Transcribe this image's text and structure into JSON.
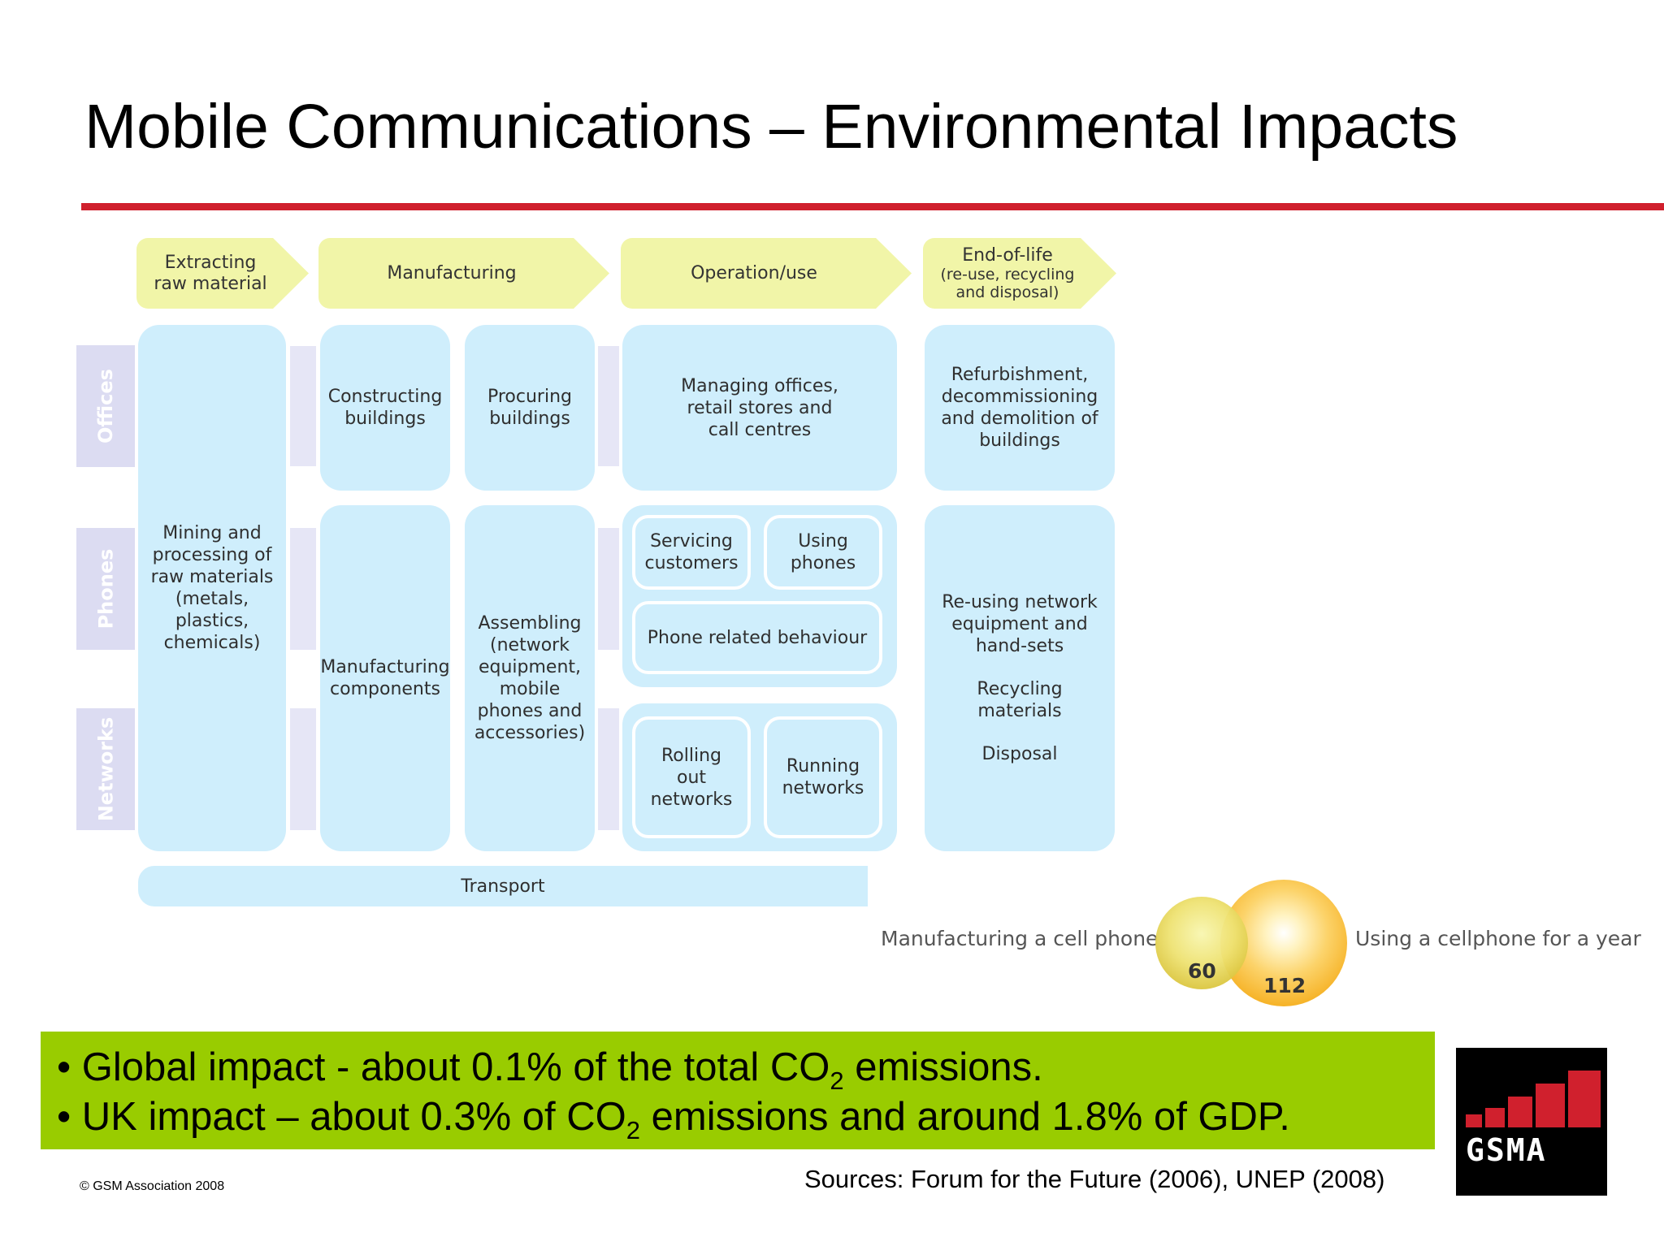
{
  "title": "Mobile Communications – Environmental Impacts",
  "colors": {
    "accent_red": "#d0202d",
    "stage_yellow": "#f1f5a8",
    "box_blue": "#cfeefc",
    "bullet_green": "#99cc00",
    "bubble_orange": "#f7b81c"
  },
  "stages": {
    "extract": "Extracting raw material",
    "manufacturing": "Manufacturing",
    "operation": "Operation/use",
    "eol": "End-of-life",
    "eol_sub": "(re-use, recycling and disposal)"
  },
  "rows": {
    "offices": "Offices",
    "phones": "Phones",
    "networks": "Networks"
  },
  "boxes": {
    "mining": "Mining and processing of raw materials (metals, plastics, chemicals)",
    "constructing": "Constructing buildings",
    "procuring": "Procuring buildings",
    "managing": "Managing offices, retail stores and call centres",
    "refurb": "Refurbishment, decommissioning and demolition of buildings",
    "manufacturing_components": "Manufacturing components",
    "assembling": "Assembling (network equipment, mobile phones and accessories)",
    "servicing": "Servicing customers",
    "using_phones": "Using phones",
    "phone_behaviour": "Phone related behaviour",
    "rolling_out": "Rolling out networks",
    "running": "Running networks",
    "reusing": "Re-using network equipment and hand-sets",
    "recycling": "Recycling materials",
    "disposal": "Disposal",
    "transport": "Transport"
  },
  "comparison": {
    "manufacturing_label": "Manufacturing a cell phone",
    "manufacturing_value": "60",
    "using_label": "Using a cellphone for a year",
    "using_value": "112"
  },
  "bullets": {
    "b1_pre": "• Global impact - about 0.1% of the total CO",
    "b1_sub": "2",
    "b1_post": " emissions.",
    "b2_pre": "• UK impact – about 0.3% of CO",
    "b2_sub": "2",
    "b2_post": " emissions and around 1.8% of GDP."
  },
  "footer": "© GSM Association 2008",
  "sources": "Sources: Forum for the Future (2006), UNEP (2008)",
  "logo_text": "GSMA"
}
